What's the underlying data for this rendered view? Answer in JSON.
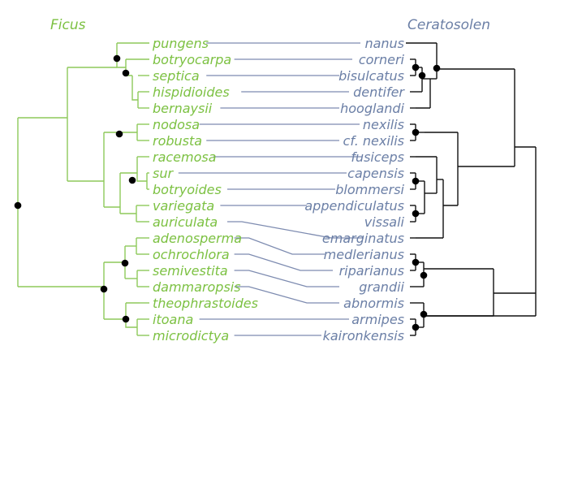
{
  "titles": {
    "left": "Ficus",
    "right": "Ceratosolen"
  },
  "ficus_taxa": [
    "pungens",
    "botryocarpa",
    "septica",
    "hispidioides",
    "bernaysii",
    "nodosa",
    "robusta",
    "racemosa",
    "sur",
    "botryoides",
    "variegata",
    "auriculata",
    "adenosperma",
    "ochrochlora",
    "semivestita",
    "dammaropsis",
    "theophrastoides",
    "itoana",
    "microdictya"
  ],
  "ceratosolen_taxa": [
    "nanus",
    "corneri",
    "bisulcatus",
    "dentifer",
    "hooglandi",
    "nexilis",
    "cf. nexilis",
    "fusiceps",
    "capensis",
    "blommersi",
    "appendiculatus",
    "vissali",
    "emarginatus",
    "medlerianus",
    "riparianus",
    "grandii",
    "abnormis",
    "armipes",
    "kaironkensis"
  ],
  "associations": [
    {
      "ficus": "pungens",
      "wasp": "nanus"
    },
    {
      "ficus": "botryocarpa",
      "wasp": "corneri"
    },
    {
      "ficus": "septica",
      "wasp": "bisulcatus"
    },
    {
      "ficus": "hispidioides",
      "wasp": "dentifer"
    },
    {
      "ficus": "bernaysii",
      "wasp": "hooglandi"
    },
    {
      "ficus": "nodosa",
      "wasp": "nexilis"
    },
    {
      "ficus": "robusta",
      "wasp": "cf. nexilis"
    },
    {
      "ficus": "racemosa",
      "wasp": "fusiceps"
    },
    {
      "ficus": "sur",
      "wasp": "capensis"
    },
    {
      "ficus": "botryoides",
      "wasp": "blommersi"
    },
    {
      "ficus": "variegata",
      "wasp": "appendiculatus"
    },
    {
      "ficus": "auriculata",
      "wasp": "emarginatus"
    },
    {
      "ficus": "adenosperma",
      "wasp": "medlerianus"
    },
    {
      "ficus": "ochrochlora",
      "wasp": "riparianus"
    },
    {
      "ficus": "semivestita",
      "wasp": "grandii"
    },
    {
      "ficus": "dammaropsis",
      "wasp": "abnormis"
    },
    {
      "ficus": "itoana",
      "wasp": "armipes"
    },
    {
      "ficus": "microdictya",
      "wasp": "kaironkensis"
    }
  ],
  "colors": {
    "ficus": "#7cc142",
    "ceratosolen": "#6b7fa6",
    "association": "#7d8bb0",
    "wasp_tree": "#111111",
    "node": "#000000"
  }
}
